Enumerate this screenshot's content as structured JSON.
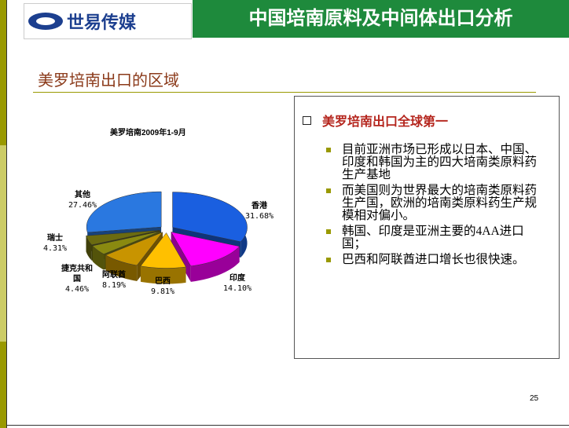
{
  "header": {
    "logo": "世易传媒",
    "title": "中国培南原料及中间体出口分析"
  },
  "subtitle": "美罗培南出口的区域",
  "chart_data": {
    "type": "pie",
    "title": "美罗培南2009年1-9月",
    "categories": [
      "香港",
      "印度",
      "巴西",
      "阿联酋",
      "捷克共和国",
      "瑞士",
      "其他"
    ],
    "values": [
      31.68,
      14.1,
      9.81,
      8.19,
      4.46,
      4.31,
      27.46
    ],
    "value_labels": [
      "31.68%",
      "14.10%",
      "9.81%",
      "8.19%",
      "4.46%",
      "4.31%",
      "27.46%"
    ],
    "colors": [
      "#1a5fe0",
      "#ff00ff",
      "#ffc000",
      "#c89400",
      "#8a8a10",
      "#6b6b10",
      "#2a78e0"
    ]
  },
  "panel": {
    "heading": "美罗培南出口全球第一",
    "bullets": [
      "目前亚洲市场已形成以日本、中国、印度和韩国为主的四大培南类原料药生产基地",
      "而美国则为世界最大的培南类原料药生产国，欧洲的培南类原料药生产规模相对偏小。",
      "韩国、印度是亚洲主要的4AA进口国；",
      "巴西和阿联酋进口增长也很快速。"
    ]
  },
  "page_number": "25"
}
